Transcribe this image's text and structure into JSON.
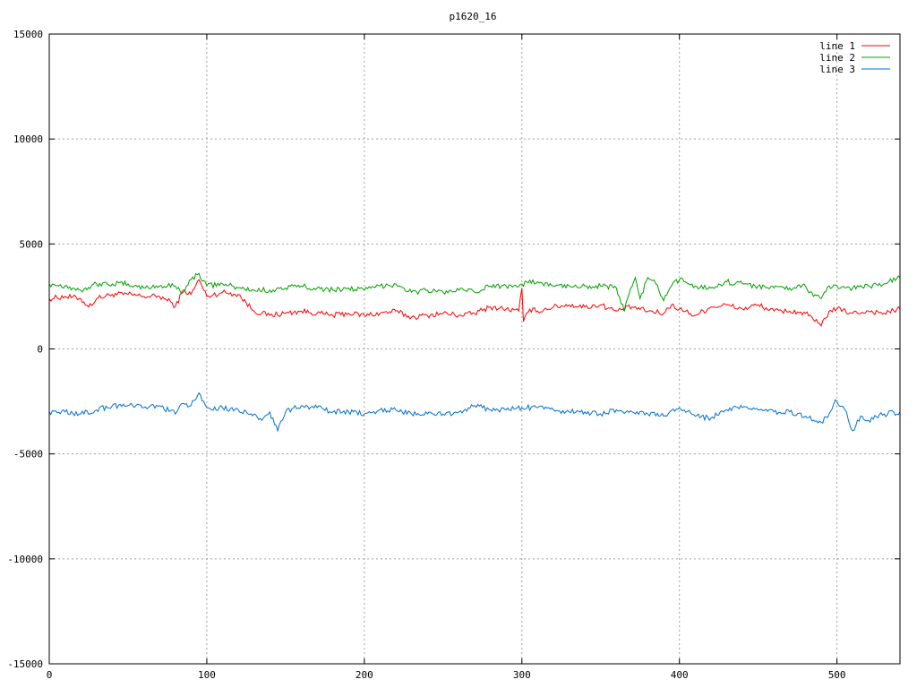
{
  "chart_data": {
    "type": "line",
    "title": "p1620_16",
    "xlabel": "",
    "ylabel": "",
    "xlim": [
      0,
      540
    ],
    "ylim": [
      -15000,
      15000
    ],
    "x_ticks": [
      0,
      100,
      200,
      300,
      400,
      500
    ],
    "y_ticks": [
      -15000,
      -10000,
      -5000,
      0,
      5000,
      10000,
      15000
    ],
    "grid": true,
    "legend_position": "top-right",
    "series": [
      {
        "name": "line 1",
        "color": "#ff0000",
        "x": [
          0,
          10,
          20,
          25,
          30,
          40,
          50,
          60,
          70,
          78,
          80,
          85,
          90,
          95,
          100,
          110,
          120,
          130,
          140,
          150,
          160,
          170,
          180,
          190,
          200,
          210,
          220,
          230,
          240,
          250,
          260,
          270,
          280,
          290,
          298,
          300,
          301,
          305,
          310,
          320,
          330,
          340,
          350,
          360,
          370,
          380,
          390,
          395,
          400,
          410,
          420,
          430,
          440,
          450,
          460,
          470,
          480,
          485,
          490,
          495,
          500,
          510,
          520,
          530,
          540
        ],
        "y": [
          2400,
          2500,
          2400,
          2000,
          2400,
          2600,
          2600,
          2500,
          2500,
          2200,
          2000,
          2800,
          2600,
          3300,
          2500,
          2700,
          2600,
          1800,
          1600,
          1700,
          1800,
          1700,
          1600,
          1700,
          1600,
          1700,
          1800,
          1500,
          1600,
          1700,
          1600,
          1700,
          2000,
          1900,
          1800,
          2900,
          1300,
          1900,
          1800,
          2000,
          2100,
          2000,
          2100,
          1800,
          2000,
          1800,
          1700,
          2100,
          1900,
          1600,
          2000,
          2100,
          1900,
          2100,
          1800,
          1800,
          1700,
          1400,
          1100,
          1800,
          1900,
          1700,
          1800,
          1700,
          1900
        ]
      },
      {
        "name": "line 2",
        "color": "#00a000",
        "x": [
          0,
          10,
          20,
          30,
          40,
          50,
          60,
          70,
          80,
          85,
          90,
          95,
          100,
          110,
          120,
          130,
          140,
          150,
          160,
          170,
          180,
          190,
          200,
          210,
          220,
          230,
          240,
          250,
          260,
          270,
          280,
          290,
          300,
          310,
          320,
          330,
          340,
          350,
          360,
          365,
          368,
          372,
          375,
          380,
          385,
          390,
          395,
          400,
          410,
          420,
          430,
          440,
          450,
          460,
          470,
          480,
          485,
          490,
          495,
          500,
          510,
          520,
          530,
          540
        ],
        "y": [
          3100,
          3000,
          2800,
          3100,
          3100,
          3100,
          2900,
          3000,
          3000,
          2700,
          3300,
          3600,
          3000,
          3100,
          2900,
          2800,
          2800,
          2900,
          3000,
          2900,
          2800,
          2900,
          2800,
          3000,
          3100,
          2700,
          2800,
          2700,
          2800,
          2700,
          3000,
          3000,
          3100,
          3200,
          3000,
          3000,
          3000,
          3000,
          2900,
          1800,
          2600,
          3400,
          2400,
          3400,
          3100,
          2300,
          3000,
          3300,
          3000,
          2900,
          3200,
          3100,
          3000,
          2900,
          2900,
          3000,
          2500,
          2400,
          3000,
          3000,
          2900,
          3000,
          3100,
          3400
        ]
      },
      {
        "name": "line 3",
        "color": "#0070d0",
        "x": [
          0,
          10,
          20,
          30,
          40,
          50,
          60,
          70,
          80,
          85,
          90,
          95,
          100,
          110,
          120,
          130,
          135,
          140,
          143,
          145,
          150,
          160,
          170,
          180,
          190,
          200,
          210,
          220,
          230,
          240,
          250,
          260,
          270,
          280,
          290,
          300,
          310,
          320,
          330,
          340,
          350,
          360,
          370,
          380,
          390,
          400,
          410,
          420,
          430,
          440,
          450,
          460,
          470,
          480,
          490,
          495,
          498,
          500,
          505,
          510,
          515,
          520,
          530,
          540
        ],
        "y": [
          -3000,
          -3000,
          -3100,
          -2900,
          -2700,
          -2700,
          -2800,
          -2700,
          -3100,
          -2600,
          -2700,
          -2100,
          -2800,
          -2800,
          -2900,
          -3100,
          -3400,
          -3000,
          -3600,
          -3900,
          -3000,
          -2700,
          -2800,
          -3000,
          -3000,
          -3100,
          -2900,
          -2900,
          -3100,
          -3100,
          -3100,
          -3000,
          -2700,
          -2900,
          -2900,
          -2800,
          -2800,
          -2900,
          -3000,
          -3000,
          -3100,
          -2900,
          -3000,
          -3100,
          -3200,
          -2800,
          -3200,
          -3300,
          -2900,
          -2800,
          -2900,
          -3000,
          -3000,
          -3200,
          -3500,
          -3100,
          -2600,
          -2500,
          -2900,
          -3900,
          -3200,
          -3400,
          -3100,
          -3000
        ]
      }
    ]
  }
}
